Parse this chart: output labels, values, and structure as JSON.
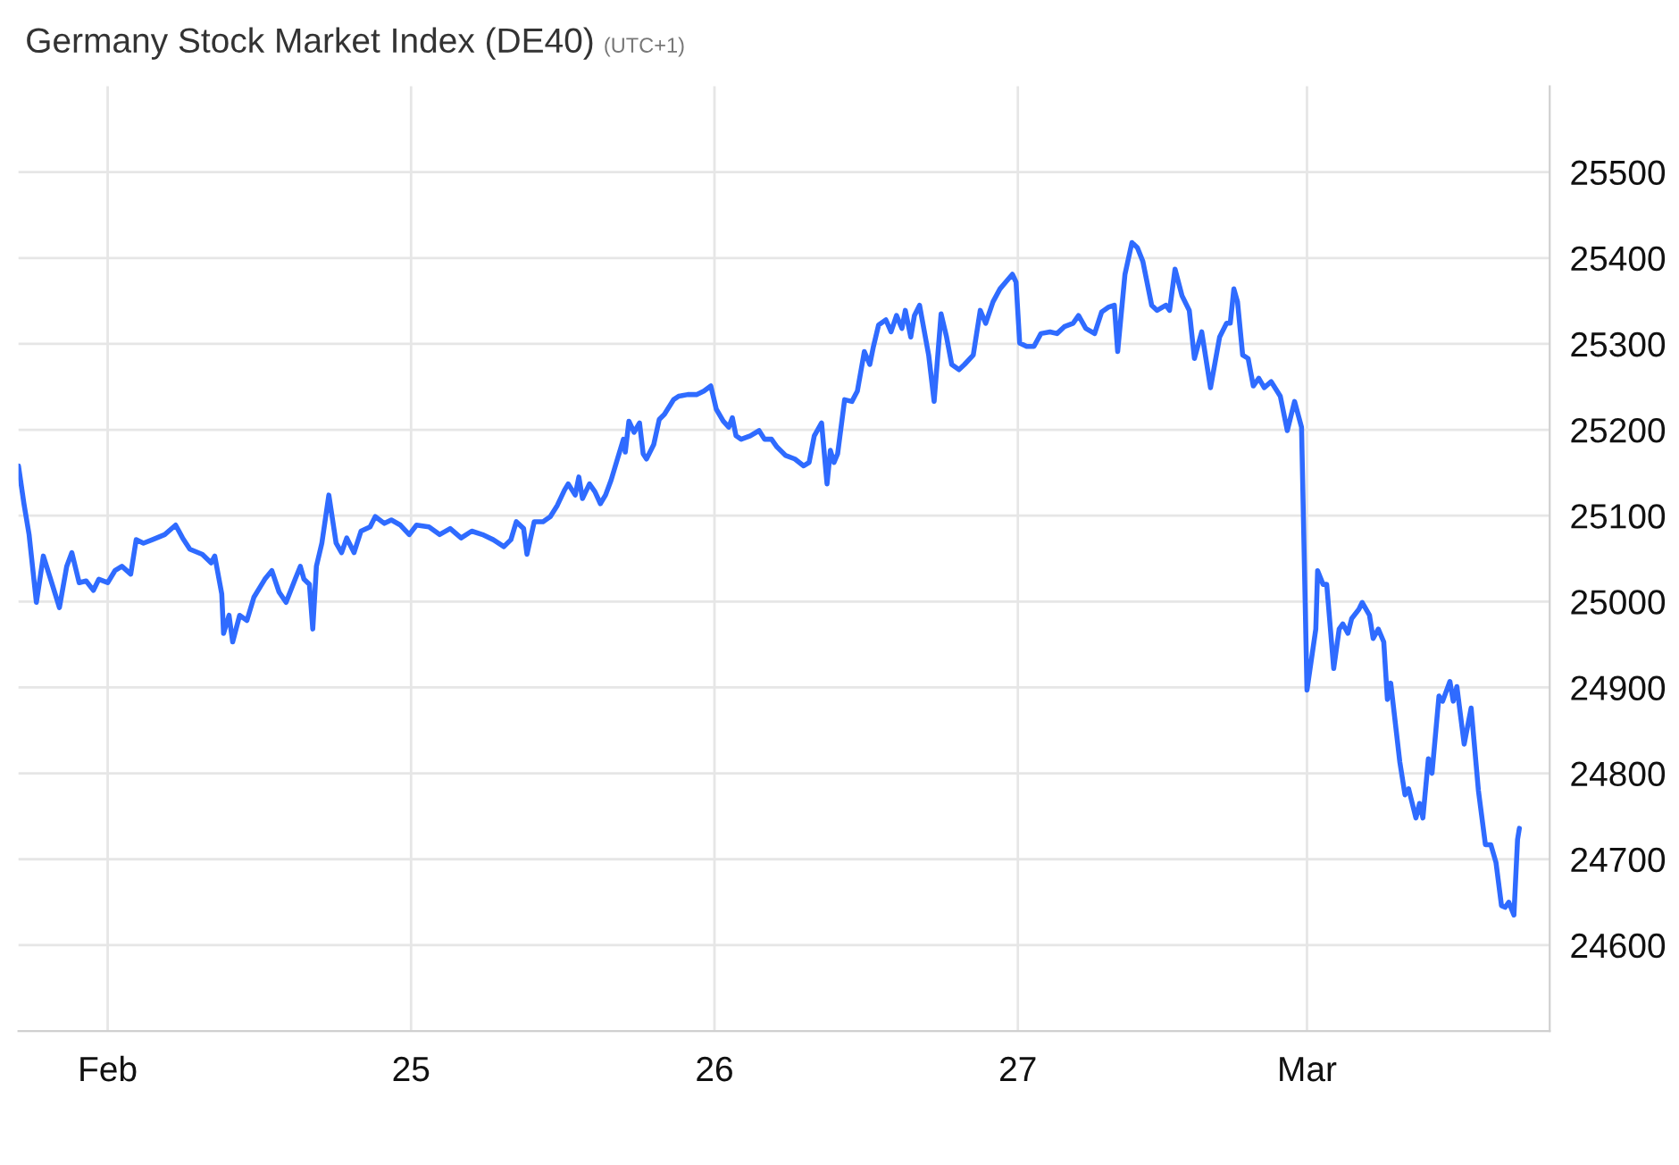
{
  "chart_data": {
    "type": "line",
    "title": "Germany Stock Market Index (DE40)",
    "subtitle": "(UTC+1)",
    "x": [
      23.706,
      23.724,
      23.741,
      23.765,
      23.788,
      23.812,
      23.841,
      23.865,
      23.882,
      23.906,
      23.929,
      23.953,
      23.971,
      24.0,
      24.024,
      24.047,
      24.076,
      24.094,
      24.118,
      24.147,
      24.188,
      24.224,
      24.247,
      24.271,
      24.312,
      24.341,
      24.353,
      24.376,
      24.382,
      24.4,
      24.412,
      24.435,
      24.459,
      24.482,
      24.518,
      24.541,
      24.565,
      24.588,
      24.618,
      24.635,
      24.647,
      24.665,
      24.676,
      24.688,
      24.706,
      24.729,
      24.753,
      24.771,
      24.788,
      24.812,
      24.835,
      24.865,
      24.882,
      24.912,
      24.935,
      24.965,
      24.994,
      25.018,
      25.059,
      25.094,
      25.129,
      25.165,
      25.2,
      25.235,
      25.271,
      25.306,
      25.329,
      25.347,
      25.371,
      25.382,
      25.406,
      25.435,
      25.459,
      25.482,
      25.506,
      25.518,
      25.541,
      25.553,
      25.565,
      25.588,
      25.606,
      25.624,
      25.641,
      25.659,
      25.682,
      25.7,
      25.706,
      25.718,
      25.735,
      25.753,
      25.765,
      25.776,
      25.8,
      25.818,
      25.835,
      25.865,
      25.882,
      25.912,
      25.941,
      25.965,
      25.988,
      26.006,
      26.029,
      26.047,
      26.059,
      26.071,
      26.088,
      26.118,
      26.147,
      26.165,
      26.188,
      26.206,
      26.235,
      26.265,
      26.294,
      26.312,
      26.329,
      26.353,
      26.371,
      26.382,
      26.394,
      26.406,
      26.429,
      26.453,
      26.471,
      26.494,
      26.512,
      26.524,
      26.541,
      26.565,
      26.582,
      26.6,
      26.618,
      26.629,
      26.647,
      26.659,
      26.676,
      26.706,
      26.724,
      26.747,
      26.765,
      26.782,
      26.806,
      26.824,
      26.853,
      26.876,
      26.894,
      26.918,
      26.941,
      26.965,
      26.982,
      26.994,
      27.006,
      27.029,
      27.053,
      27.076,
      27.106,
      27.129,
      27.153,
      27.182,
      27.2,
      27.224,
      27.253,
      27.276,
      27.3,
      27.318,
      27.329,
      27.353,
      27.376,
      27.394,
      27.412,
      27.441,
      27.459,
      27.488,
      27.5,
      27.518,
      27.541,
      27.565,
      27.582,
      27.606,
      27.635,
      27.665,
      27.688,
      27.7,
      27.712,
      27.724,
      27.741,
      27.759,
      27.776,
      27.794,
      27.812,
      27.835,
      27.865,
      27.888,
      27.912,
      27.935,
      27.953,
      27.982,
      27.988,
      28.006,
      28.018,
      28.041,
      28.059,
      28.071,
      28.088,
      28.1,
      28.124,
      28.135,
      28.159,
      28.171,
      28.188,
      28.206,
      28.218,
      28.229,
      28.259,
      28.276,
      28.288,
      28.312,
      28.324,
      28.335,
      28.353,
      28.365,
      28.388,
      28.4,
      28.424,
      28.435,
      28.447,
      28.471,
      28.494,
      28.518,
      28.541,
      28.559,
      28.576,
      28.594,
      28.606,
      28.618,
      28.635,
      28.647,
      28.653
    ],
    "values": [
      25158,
      25114,
      25078,
      24999,
      25053,
      25026,
      24993,
      25041,
      25057,
      25022,
      25024,
      25013,
      25026,
      25022,
      25036,
      25041,
      25032,
      25072,
      25068,
      25072,
      25078,
      25089,
      25074,
      25061,
      25055,
      25045,
      25053,
      25009,
      24963,
      24984,
      24953,
      24984,
      24978,
      25005,
      25026,
      25036,
      25011,
      24999,
      25026,
      25041,
      25026,
      25020,
      24968,
      25041,
      25068,
      25124,
      25068,
      25057,
      25074,
      25057,
      25082,
      25087,
      25099,
      25091,
      25095,
      25089,
      25078,
      25089,
      25087,
      25078,
      25085,
      25074,
      25082,
      25078,
      25072,
      25064,
      25072,
      25093,
      25085,
      25055,
      25093,
      25093,
      25099,
      25112,
      25130,
      25137,
      25124,
      25145,
      25120,
      25137,
      25128,
      25114,
      25124,
      25141,
      25168,
      25189,
      25174,
      25210,
      25197,
      25208,
      25172,
      25166,
      25183,
      25212,
      25218,
      25235,
      25239,
      25241,
      25241,
      25245,
      25251,
      25224,
      25210,
      25203,
      25214,
      25193,
      25189,
      25193,
      25199,
      25189,
      25189,
      25180,
      25170,
      25166,
      25158,
      25162,
      25193,
      25208,
      25137,
      25176,
      25162,
      25172,
      25235,
      25233,
      25245,
      25291,
      25276,
      25297,
      25322,
      25328,
      25314,
      25333,
      25318,
      25339,
      25308,
      25333,
      25345,
      25287,
      25233,
      25335,
      25308,
      25276,
      25270,
      25276,
      25287,
      25339,
      25324,
      25349,
      25364,
      25374,
      25381,
      25372,
      25301,
      25297,
      25297,
      25312,
      25314,
      25312,
      25320,
      25324,
      25333,
      25318,
      25312,
      25337,
      25343,
      25345,
      25291,
      25381,
      25418,
      25412,
      25396,
      25345,
      25339,
      25345,
      25339,
      25387,
      25356,
      25339,
      25283,
      25314,
      25249,
      25308,
      25324,
      25324,
      25364,
      25349,
      25287,
      25283,
      25251,
      25260,
      25249,
      25256,
      25239,
      25199,
      25233,
      25203,
      24897,
      24968,
      25036,
      25020,
      25020,
      24922,
      24968,
      24974,
      24963,
      24980,
      24991,
      24999,
      24984,
      24957,
      24968,
      24953,
      24886,
      24905,
      24813,
      24775,
      24782,
      24748,
      24765,
      24748,
      24817,
      24800,
      24890,
      24884,
      24907,
      24884,
      24901,
      24834,
      24876,
      24780,
      24717,
      24717,
      24696,
      24646,
      24644,
      24650,
      24635,
      24723,
      24736
    ],
    "color": "#2f6bff",
    "xlim": [
      23.706,
      28.753
    ],
    "xticks": [
      {
        "value": 24,
        "label": "Feb"
      },
      25,
      26,
      27,
      {
        "value": 27.953,
        "label": "Mar"
      }
    ],
    "ylim": [
      24500,
      25600
    ],
    "yticks": [
      24600,
      24700,
      24800,
      24900,
      25000,
      25100,
      25200,
      25300,
      25400,
      25500
    ],
    "grid": true,
    "legend": false,
    "marker": "none",
    "line_style": "solid"
  }
}
